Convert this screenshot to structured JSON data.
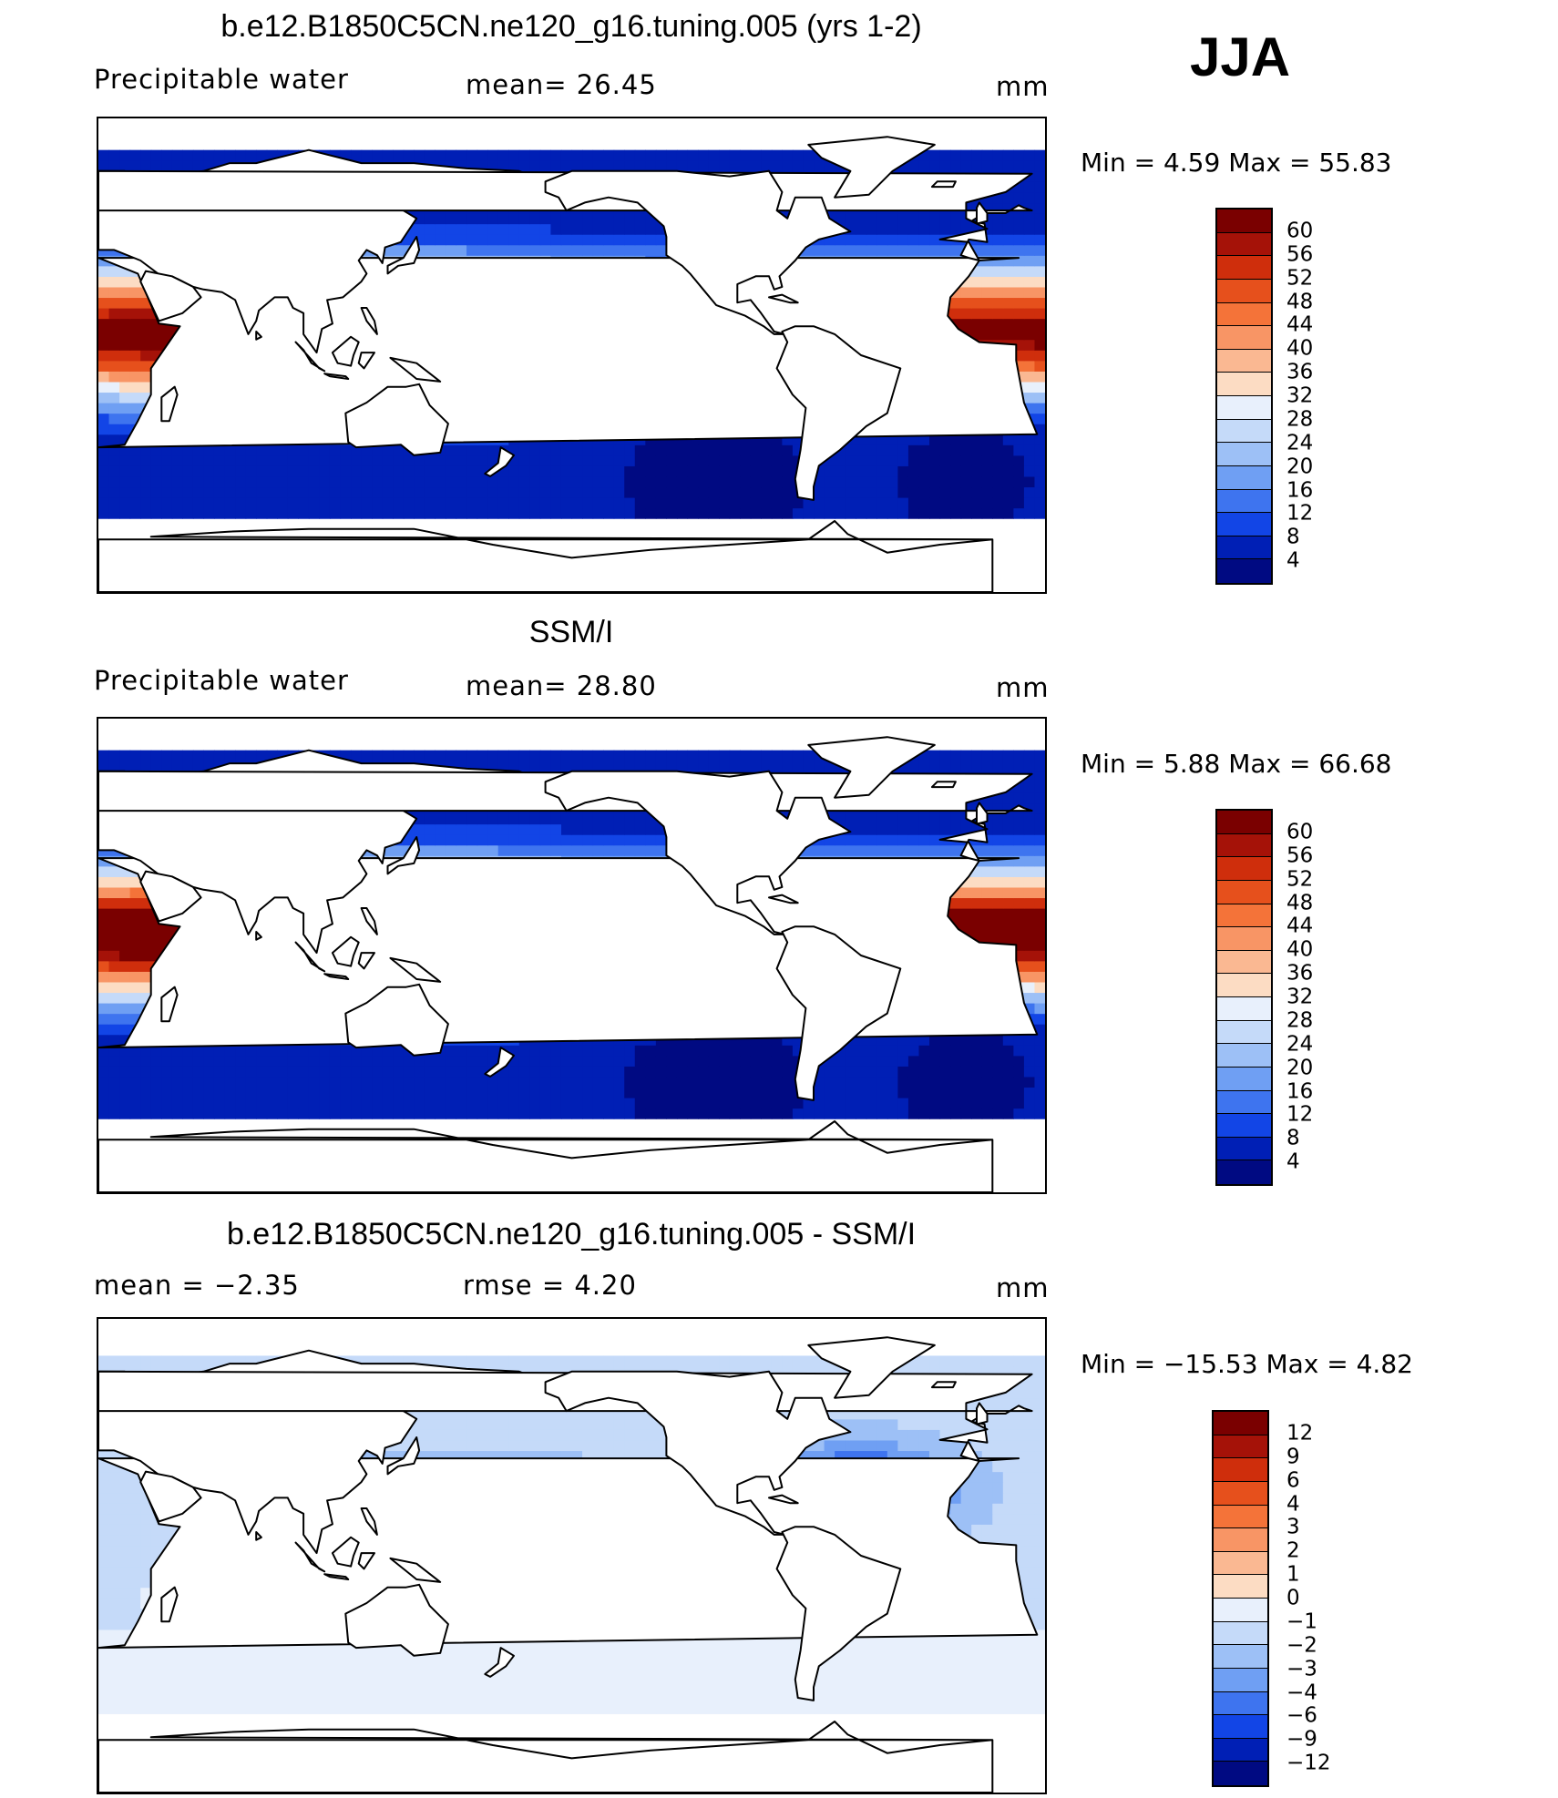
{
  "season": "JJA",
  "colors": {
    "coast": "#000000",
    "land": "#ffffff",
    "neg_scale": [
      "#00007f",
      "#0015a7",
      "#0030cf",
      "#1249ee",
      "#2a65f0",
      "#4a85f2",
      "#72a4f5",
      "#9dc1f7",
      "#c8dcfa",
      "#eef3fd"
    ],
    "pos_scale": [
      "#fde9d8",
      "#fbcfb2",
      "#f9ae87",
      "#f88b5d",
      "#f46a3a",
      "#e04a22",
      "#c42f12",
      "#990f0f",
      "#7a0000"
    ]
  },
  "panels": [
    {
      "id": "model",
      "title": "b.e12.B1850C5CN.ne120_g16.tuning.005 (yrs 1-2)",
      "left_label": "Precipitable  water",
      "center_label": "mean=   26.45",
      "units": "mm",
      "stats": "Min  =      4.59  Max  =     55.83",
      "colorbar": [
        "60",
        "56",
        "52",
        "48",
        "44",
        "40",
        "36",
        "32",
        "28",
        "24",
        "20",
        "16",
        "12",
        "8",
        "4"
      ],
      "colorbar_colors": [
        "#7a0000",
        "#a51208",
        "#cf2e0c",
        "#e6501c",
        "#f47339",
        "#f89565",
        "#fab892",
        "#fcdcc3",
        "#e8f0fc",
        "#c5daf9",
        "#9dc0f6",
        "#6f9ff3",
        "#3e74ef",
        "#1245e6",
        "#001fb5",
        "#000a82"
      ]
    },
    {
      "id": "obs",
      "title": "SSM/I",
      "left_label": "Precipitable  water",
      "center_label": "mean=   28.80",
      "units": "mm",
      "stats": "Min  =      5.88  Max  =     66.68",
      "colorbar": [
        "60",
        "56",
        "52",
        "48",
        "44",
        "40",
        "36",
        "32",
        "28",
        "24",
        "20",
        "16",
        "12",
        "8",
        "4"
      ],
      "colorbar_colors": [
        "#7a0000",
        "#a51208",
        "#cf2e0c",
        "#e6501c",
        "#f47339",
        "#f89565",
        "#fab892",
        "#fcdcc3",
        "#e8f0fc",
        "#c5daf9",
        "#9dc0f6",
        "#6f9ff3",
        "#3e74ef",
        "#1245e6",
        "#001fb5",
        "#000a82"
      ]
    },
    {
      "id": "diff",
      "title": "b.e12.B1850C5CN.ne120_g16.tuning.005 - SSM/I",
      "left_label": "mean  =    −2.35",
      "center_label": "rmse  =     4.20",
      "units": "mm",
      "stats": "Min  = −15.53  Max  =      4.82",
      "colorbar": [
        "12",
        "9",
        "6",
        "4",
        "3",
        "2",
        "1",
        "0",
        "−1",
        "−2",
        "−3",
        "−4",
        "−6",
        "−9",
        "−12"
      ],
      "colorbar_colors": [
        "#7a0000",
        "#a51208",
        "#cf2e0c",
        "#e6501c",
        "#f47339",
        "#f89565",
        "#fab892",
        "#fcdcc3",
        "#e8f0fc",
        "#c5daf9",
        "#9dc0f6",
        "#6f9ff3",
        "#3e74ef",
        "#1245e6",
        "#001fb5",
        "#000a82"
      ]
    }
  ]
}
